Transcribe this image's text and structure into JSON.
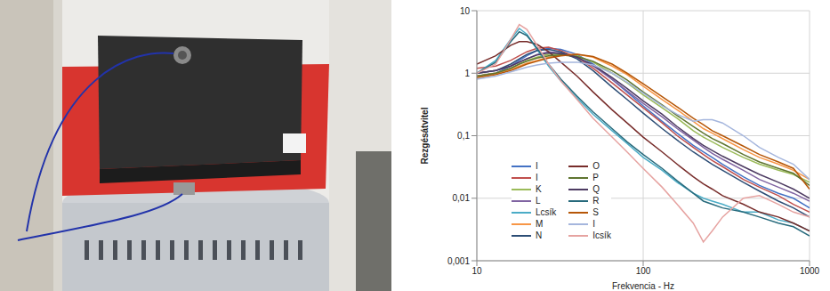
{
  "chart_data": {
    "type": "line",
    "x_label": "Frekvencia - Hz",
    "y_label": "Rezgésátvitel",
    "log": true,
    "grid": true,
    "legend": "lower left",
    "xlim": [
      10,
      1000
    ],
    "xticks": [
      10,
      100,
      1000
    ],
    "ylim": [
      0.001,
      10
    ],
    "yticks": [
      {
        "value": 0.001,
        "label": "0,001"
      },
      {
        "value": 0.01,
        "label": "0,01"
      },
      {
        "value": 0.1,
        "label": "0,1"
      },
      1,
      10
    ],
    "x": [
      10,
      13,
      16,
      18,
      20,
      23,
      27,
      32,
      40,
      50,
      65,
      80,
      100,
      130,
      160,
      200,
      230,
      260,
      300,
      400,
      500,
      650,
      800,
      1000
    ],
    "series": [
      {
        "name": "I",
        "color": "#4472c4",
        "values": [
          0.9,
          1.0,
          1.3,
          1.6,
          1.9,
          2.3,
          2.5,
          2.4,
          2.0,
          1.4,
          0.8,
          0.5,
          0.3,
          0.17,
          0.11,
          0.07,
          0.055,
          0.045,
          0.035,
          0.022,
          0.016,
          0.012,
          0.01,
          0.007
        ]
      },
      {
        "name": "I",
        "color": "#c0504d",
        "values": [
          1.2,
          1.3,
          1.6,
          1.9,
          2.2,
          2.5,
          2.6,
          2.3,
          1.8,
          1.2,
          0.7,
          0.45,
          0.28,
          0.16,
          0.1,
          0.065,
          0.05,
          0.04,
          0.032,
          0.02,
          0.015,
          0.011,
          0.008,
          0.006
        ]
      },
      {
        "name": "K",
        "color": "#9bbb59",
        "values": [
          0.9,
          1.0,
          1.2,
          1.4,
          1.6,
          1.8,
          2.0,
          2.0,
          1.9,
          1.5,
          1.0,
          0.7,
          0.45,
          0.28,
          0.19,
          0.12,
          0.095,
          0.08,
          0.065,
          0.045,
          0.035,
          0.028,
          0.024,
          0.018
        ]
      },
      {
        "name": "L",
        "color": "#8064a2",
        "values": [
          1.0,
          1.1,
          1.3,
          1.5,
          1.7,
          2.0,
          2.2,
          2.1,
          1.8,
          1.3,
          0.8,
          0.52,
          0.33,
          0.2,
          0.13,
          0.085,
          0.065,
          0.052,
          0.042,
          0.028,
          0.02,
          0.015,
          0.012,
          0.009
        ]
      },
      {
        "name": "Lcsík",
        "color": "#4bacc6",
        "values": [
          1.0,
          1.6,
          3.5,
          5.2,
          4.2,
          2.4,
          1.3,
          0.75,
          0.4,
          0.22,
          0.12,
          0.075,
          0.045,
          0.028,
          0.018,
          0.012,
          0.01,
          0.009,
          0.008,
          0.006,
          0.006,
          0.0045,
          0.004,
          0.003
        ]
      },
      {
        "name": "M",
        "color": "#f79646",
        "values": [
          0.9,
          1.0,
          1.15,
          1.3,
          1.45,
          1.6,
          1.8,
          1.95,
          2.0,
          1.8,
          1.3,
          0.95,
          0.62,
          0.38,
          0.26,
          0.17,
          0.13,
          0.11,
          0.09,
          0.06,
          0.045,
          0.035,
          0.028,
          0.02
        ]
      },
      {
        "name": "N",
        "color": "#2c4d75",
        "values": [
          1.0,
          1.1,
          1.4,
          1.7,
          2.0,
          2.3,
          2.4,
          2.2,
          1.7,
          1.1,
          0.6,
          0.38,
          0.23,
          0.13,
          0.085,
          0.055,
          0.043,
          0.035,
          0.028,
          0.018,
          0.013,
          0.009,
          0.007,
          0.005
        ]
      },
      {
        "name": "O",
        "color": "#772c2a",
        "values": [
          1.4,
          1.9,
          2.8,
          3.2,
          3.2,
          2.9,
          2.2,
          1.5,
          0.9,
          0.5,
          0.26,
          0.16,
          0.095,
          0.055,
          0.035,
          0.022,
          0.017,
          0.014,
          0.011,
          0.008,
          0.006,
          0.005,
          0.004,
          0.003
        ]
      },
      {
        "name": "P",
        "color": "#5f7530",
        "values": [
          0.9,
          1.0,
          1.2,
          1.4,
          1.55,
          1.75,
          1.9,
          1.95,
          1.85,
          1.55,
          1.1,
          0.78,
          0.5,
          0.31,
          0.21,
          0.14,
          0.11,
          0.09,
          0.075,
          0.05,
          0.038,
          0.03,
          0.025,
          0.016
        ]
      },
      {
        "name": "Q",
        "color": "#4d3b62",
        "values": [
          1.0,
          1.1,
          1.3,
          1.5,
          1.7,
          1.95,
          2.1,
          2.05,
          1.8,
          1.35,
          0.85,
          0.57,
          0.36,
          0.22,
          0.14,
          0.09,
          0.07,
          0.058,
          0.047,
          0.032,
          0.024,
          0.018,
          0.014,
          0.01
        ]
      },
      {
        "name": "R",
        "color": "#276a7c",
        "values": [
          1.0,
          1.5,
          3.2,
          4.6,
          4.0,
          2.5,
          1.4,
          0.8,
          0.43,
          0.24,
          0.13,
          0.08,
          0.05,
          0.03,
          0.019,
          0.012,
          0.009,
          0.008,
          0.007,
          0.006,
          0.005,
          0.004,
          0.0035,
          0.0025
        ]
      },
      {
        "name": "S",
        "color": "#b65708",
        "values": [
          0.85,
          0.95,
          1.1,
          1.25,
          1.4,
          1.55,
          1.75,
          1.9,
          2.0,
          1.85,
          1.4,
          1.0,
          0.68,
          0.42,
          0.29,
          0.19,
          0.15,
          0.12,
          0.1,
          0.068,
          0.05,
          0.038,
          0.03,
          0.014
        ]
      },
      {
        "name": "I",
        "color": "#a5b6dd",
        "values": [
          0.8,
          0.9,
          1.05,
          1.15,
          1.25,
          1.35,
          1.45,
          1.5,
          1.5,
          1.35,
          1.0,
          0.72,
          0.48,
          0.3,
          0.22,
          0.17,
          0.18,
          0.18,
          0.16,
          0.1,
          0.065,
          0.045,
          0.035,
          0.02
        ]
      },
      {
        "name": "Icsík",
        "color": "#e6a3a1",
        "values": [
          1.0,
          1.4,
          3.5,
          6.0,
          5.0,
          2.8,
          1.4,
          0.75,
          0.38,
          0.19,
          0.095,
          0.055,
          0.03,
          0.015,
          0.008,
          0.004,
          0.002,
          0.003,
          0.005,
          0.01,
          0.011,
          0.008,
          0.006,
          0.005
        ]
      }
    ]
  }
}
